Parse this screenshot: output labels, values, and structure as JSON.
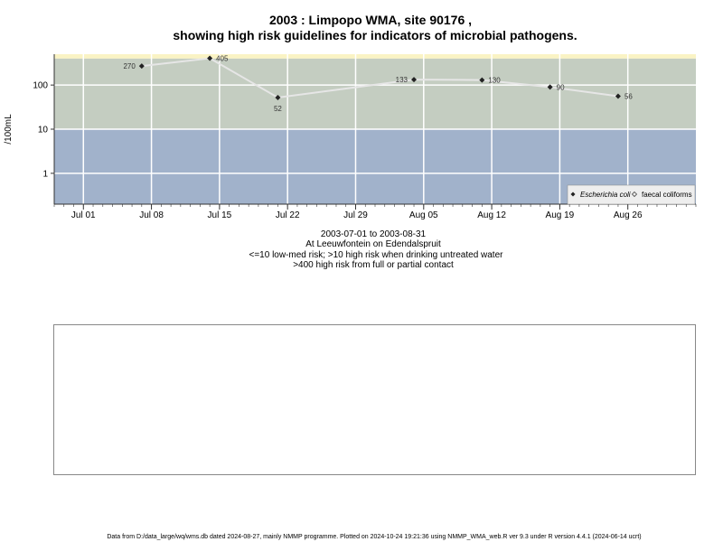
{
  "chart_data": {
    "type": "line",
    "title_line1": "2003 : Limpopo WMA, site 90176 ,",
    "title_line2": "showing high risk guidelines for indicators of microbial pathogens.",
    "ylabel": "/100mL",
    "y_scale": "log",
    "ylim": [
      0.2,
      500
    ],
    "yticks": [
      {
        "value": 1,
        "label": "1"
      },
      {
        "value": 10,
        "label": "10"
      },
      {
        "value": 100,
        "label": "100"
      }
    ],
    "xlim": [
      "2003-06-28",
      "2003-09-02"
    ],
    "xticks": [
      {
        "date": "2003-07-01",
        "label": "Jul 01"
      },
      {
        "date": "2003-07-08",
        "label": "Jul 08"
      },
      {
        "date": "2003-07-15",
        "label": "Jul 15"
      },
      {
        "date": "2003-07-22",
        "label": "Jul 22"
      },
      {
        "date": "2003-07-29",
        "label": "Jul 29"
      },
      {
        "date": "2003-08-05",
        "label": "Aug 05"
      },
      {
        "date": "2003-08-12",
        "label": "Aug 12"
      },
      {
        "date": "2003-08-19",
        "label": "Aug 19"
      },
      {
        "date": "2003-08-26",
        "label": "Aug 26"
      }
    ],
    "grid": true,
    "risk_bands": [
      {
        "from": 0.2,
        "to": 10,
        "color": "#a1b2cb"
      },
      {
        "from": 10,
        "to": 400,
        "color": "#c4cdc1"
      },
      {
        "from": 400,
        "to": 500,
        "color": "#faf3c4"
      }
    ],
    "series": [
      {
        "name": "Escherichia coli",
        "marker": "diamond",
        "color": "#222222",
        "line_color": "#e6e6e6",
        "points": [
          {
            "x": "2003-07-07",
            "y": 270,
            "label": "270"
          },
          {
            "x": "2003-07-14",
            "y": 405,
            "label": "405"
          },
          {
            "x": "2003-07-21",
            "y": 52,
            "label": "52"
          },
          {
            "x": "2003-08-04",
            "y": 133,
            "label": "133"
          },
          {
            "x": "2003-08-11",
            "y": 130,
            "label": "130"
          },
          {
            "x": "2003-08-18",
            "y": 90,
            "label": "90"
          },
          {
            "x": "2003-08-25",
            "y": 56,
            "label": "56"
          }
        ]
      },
      {
        "name": "faecal coliforms",
        "marker": "open-diamond",
        "color": "#444444",
        "points": []
      }
    ],
    "legend_position": "bottom-right",
    "subtitle_lines": [
      "2003-07-01 to 2003-08-31",
      "At Leeuwfontein on Edendalspruit",
      "<=10 low-med risk; >10 high risk when drinking untreated water",
      ">400 high risk from full or partial contact"
    ]
  },
  "footer": "Data from D:/data_large/wq/wms.db dated 2024-08-27, mainly NMMP programme. Plotted on 2024-10-24 19:21:36 using NMMP_WMA_web.R ver 9.3 under R version 4.4.1 (2024-06-14 ucrt)",
  "colors": {
    "axis": "#333333",
    "grid": "#ffffff",
    "empty_panel_border": "#888888"
  }
}
